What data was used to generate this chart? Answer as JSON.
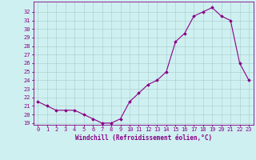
{
  "x": [
    0,
    1,
    2,
    3,
    4,
    5,
    6,
    7,
    8,
    9,
    10,
    11,
    12,
    13,
    14,
    15,
    16,
    17,
    18,
    19,
    20,
    21,
    22,
    23
  ],
  "y": [
    21.5,
    21.0,
    20.5,
    20.5,
    20.5,
    20.0,
    19.5,
    19.0,
    19.0,
    19.5,
    21.5,
    22.5,
    23.5,
    24.0,
    25.0,
    28.5,
    29.5,
    31.5,
    32.0,
    32.5,
    31.5,
    31.0,
    26.0,
    24.0
  ],
  "xlabel": "Windchill (Refroidissement éolien,°C)",
  "xlim": [
    -0.5,
    23.5
  ],
  "ylim": [
    18.8,
    33.2
  ],
  "yticks": [
    19,
    20,
    21,
    22,
    23,
    24,
    25,
    26,
    27,
    28,
    29,
    30,
    31,
    32
  ],
  "xticks": [
    0,
    1,
    2,
    3,
    4,
    5,
    6,
    7,
    8,
    9,
    10,
    11,
    12,
    13,
    14,
    15,
    16,
    17,
    18,
    19,
    20,
    21,
    22,
    23
  ],
  "line_color": "#880088",
  "marker": "D",
  "marker_size": 1.8,
  "bg_color": "#cff0f0",
  "grid_color": "#aacccc",
  "font_color": "#880088",
  "font_family": "monospace",
  "tick_fontsize": 5.0,
  "xlabel_fontsize": 5.5
}
